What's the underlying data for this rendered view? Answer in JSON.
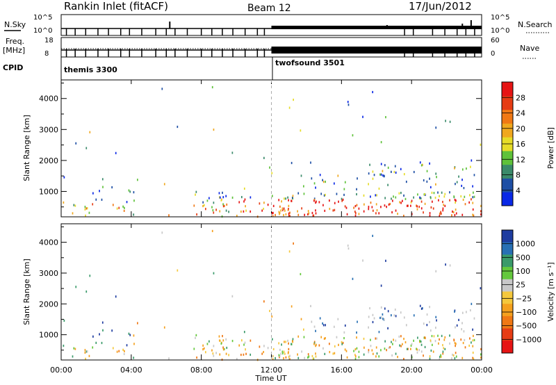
{
  "header": {
    "station": "Rankin Inlet (fitACF)",
    "beam": "Beam 12",
    "date": "17/Jun/2012"
  },
  "panels": {
    "nsky": {
      "label": "N.Sky",
      "ticks": [
        "10^5",
        "10^0"
      ],
      "right_label": "N.Search",
      "right_ticks": [
        "10^5",
        "10^0"
      ]
    },
    "freq": {
      "label_line1": "Freq.",
      "label_line2": "[MHz]",
      "ticks": [
        "18",
        "8"
      ],
      "right_label": "Nave",
      "right_ticks": [
        "60",
        "0"
      ]
    },
    "cpid": {
      "label": "CPID",
      "modes": [
        {
          "name": "themis 3300",
          "start_hour": 0
        },
        {
          "name": "twofsound 3501",
          "start_hour": 12
        }
      ]
    }
  },
  "chart_data": [
    {
      "type": "heatmap",
      "name": "Power",
      "ylabel": "Slant Range [km]",
      "yticks": [
        1000,
        2000,
        3000,
        4000
      ],
      "ylim": [
        180,
        4600
      ],
      "xlim": [
        0,
        24
      ],
      "colorbar": {
        "label": "Power [dB]",
        "ticks": [
          "4",
          "8",
          "12",
          "16",
          "20",
          "24",
          "28"
        ],
        "colors": [
          "#0a28e6",
          "#1e4fa5",
          "#3a8a6a",
          "#5fc23a",
          "#e6dc28",
          "#f0a81e",
          "#f07814",
          "#e63c14",
          "#e61414"
        ]
      }
    },
    {
      "type": "heatmap",
      "name": "Velocity",
      "ylabel": "Slant Range [km]",
      "yticks": [
        1000,
        2000,
        3000,
        4000
      ],
      "ylim": [
        180,
        4600
      ],
      "xlim": [
        0,
        24
      ],
      "xticks": [
        "00:00",
        "04:00",
        "08:00",
        "12:00",
        "16:00",
        "20:00",
        "00:00"
      ],
      "xlabel": "Time UT",
      "colorbar": {
        "label": "Velocity [m s⁻¹]",
        "ticks": [
          "1000",
          "500",
          "100",
          "25",
          "−25",
          "−100",
          "−500",
          "−1000"
        ],
        "colors": [
          "#1e3ca0",
          "#2870b4",
          "#3a9a6a",
          "#64c83c",
          "#c8c8c8",
          "#f5c83c",
          "#f5a01e",
          "#f07814",
          "#e63c14",
          "#e61414"
        ]
      }
    }
  ]
}
